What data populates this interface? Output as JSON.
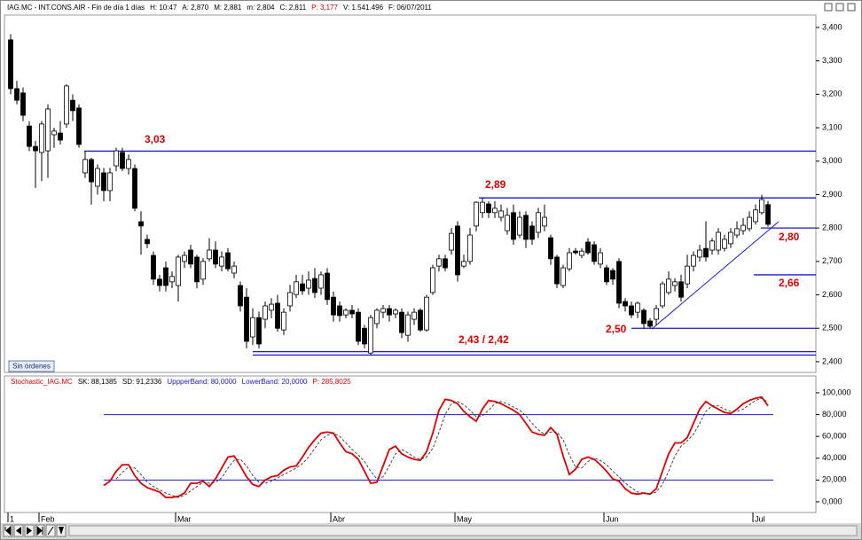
{
  "ui": {
    "orders_button": "Sin órdenes"
  },
  "chart_data": [
    {
      "type": "candlestick",
      "title": [
        {
          "text": "IAG.MC - INT.CONS.AIR - Fin de día 1 días",
          "color": "#000000"
        },
        {
          "text": "H: 10:47",
          "color": "#000000"
        },
        {
          "text": "A: 2,870",
          "color": "#000000"
        },
        {
          "text": "M: 2,881",
          "color": "#000000"
        },
        {
          "text": "m: 2,804",
          "color": "#000000"
        },
        {
          "text": "C: 2,811",
          "color": "#000000"
        },
        {
          "text": "P: 3,177",
          "color": "#e00000"
        },
        {
          "text": "V: 1.541.496",
          "color": "#000000"
        },
        {
          "text": "F: 06/07/2011",
          "color": "#000000"
        }
      ],
      "open": [
        3.363,
        3.217,
        3.204,
        3.105,
        3.044,
        3.026,
        3.031,
        3.079,
        3.084,
        3.111,
        3.182,
        3.159,
        2.965,
        3.005,
        2.925,
        2.965,
        2.912,
        2.986,
        3.026,
        2.978,
        2.978,
        2.819,
        2.766,
        2.718,
        2.647,
        2.681,
        2.639,
        2.628,
        2.7,
        2.734,
        2.713,
        2.647,
        2.708,
        2.734,
        2.686,
        2.726,
        2.665,
        2.628,
        2.593,
        2.474,
        2.532,
        2.527,
        2.554,
        2.575,
        2.495,
        2.567,
        2.601,
        2.633,
        2.62,
        2.649,
        2.62,
        2.665,
        2.593,
        2.567,
        2.54,
        2.554,
        2.548,
        2.5,
        2.426,
        2.514,
        2.548,
        2.559,
        2.543,
        2.548,
        2.479,
        2.527,
        2.554,
        2.495,
        2.607,
        2.686,
        2.708,
        2.734,
        2.806,
        2.686,
        2.7,
        2.806,
        2.846,
        2.872,
        2.846,
        2.832,
        2.792,
        2.846,
        2.779,
        2.838,
        2.806,
        2.787,
        2.806,
        2.771,
        2.713,
        2.628,
        2.678,
        2.731,
        2.718,
        2.758,
        2.75,
        2.692,
        2.681,
        2.673,
        2.7,
        2.58,
        2.567,
        2.548,
        2.554,
        2.522,
        2.527,
        2.567,
        2.607,
        2.628,
        2.639,
        2.633,
        2.686,
        2.713,
        2.739,
        2.734,
        2.734,
        2.739,
        2.753,
        2.779,
        2.792,
        2.798,
        2.819,
        2.846,
        2.87
      ],
      "high": [
        3.38,
        3.24,
        3.22,
        3.12,
        3.06,
        3.12,
        3.17,
        3.1,
        3.12,
        3.23,
        3.2,
        3.17,
        3.03,
        3.01,
        2.99,
        2.98,
        2.98,
        3.04,
        3.04,
        3.02,
        2.99,
        2.85,
        2.78,
        2.73,
        2.66,
        2.7,
        2.67,
        2.72,
        2.73,
        2.75,
        2.72,
        2.71,
        2.77,
        2.76,
        2.73,
        2.74,
        2.7,
        2.64,
        2.62,
        2.56,
        2.55,
        2.58,
        2.59,
        2.6,
        2.56,
        2.63,
        2.66,
        2.66,
        2.67,
        2.68,
        2.67,
        2.68,
        2.61,
        2.58,
        2.56,
        2.57,
        2.56,
        2.51,
        2.54,
        2.56,
        2.57,
        2.57,
        2.56,
        2.56,
        2.55,
        2.56,
        2.56,
        2.6,
        2.69,
        2.72,
        2.72,
        2.8,
        2.82,
        2.72,
        2.8,
        2.88,
        2.89,
        2.88,
        2.88,
        2.87,
        2.86,
        2.87,
        2.85,
        2.85,
        2.82,
        2.86,
        2.87,
        2.78,
        2.72,
        2.69,
        2.74,
        2.74,
        2.74,
        2.77,
        2.76,
        2.74,
        2.69,
        2.68,
        2.71,
        2.59,
        2.58,
        2.58,
        2.56,
        2.53,
        2.57,
        2.64,
        2.67,
        2.65,
        2.66,
        2.72,
        2.73,
        2.75,
        2.82,
        2.77,
        2.8,
        2.78,
        2.8,
        2.82,
        2.83,
        2.85,
        2.87,
        2.9,
        2.881
      ],
      "low": [
        3.2,
        3.17,
        3.12,
        3.03,
        2.92,
        2.94,
        2.95,
        3.04,
        3.05,
        3.1,
        3.12,
        3.04,
        2.95,
        2.87,
        2.9,
        2.88,
        2.88,
        2.97,
        2.97,
        2.96,
        2.85,
        2.72,
        2.74,
        2.63,
        2.61,
        2.61,
        2.62,
        2.58,
        2.68,
        2.68,
        2.62,
        2.63,
        2.7,
        2.68,
        2.67,
        2.67,
        2.65,
        2.55,
        2.44,
        2.45,
        2.44,
        2.5,
        2.53,
        2.49,
        2.48,
        2.55,
        2.59,
        2.6,
        2.6,
        2.59,
        2.6,
        2.57,
        2.52,
        2.52,
        2.53,
        2.53,
        2.45,
        2.44,
        2.42,
        2.5,
        2.53,
        2.52,
        2.53,
        2.47,
        2.46,
        2.51,
        2.49,
        2.49,
        2.6,
        2.67,
        2.67,
        2.72,
        2.64,
        2.68,
        2.69,
        2.79,
        2.83,
        2.83,
        2.83,
        2.82,
        2.78,
        2.75,
        2.77,
        2.74,
        2.75,
        2.77,
        2.79,
        2.69,
        2.62,
        2.62,
        2.67,
        2.72,
        2.71,
        2.72,
        2.69,
        2.68,
        2.63,
        2.63,
        2.56,
        2.55,
        2.53,
        2.53,
        2.5,
        2.5,
        2.51,
        2.56,
        2.6,
        2.61,
        2.58,
        2.62,
        2.67,
        2.7,
        2.7,
        2.72,
        2.72,
        2.73,
        2.74,
        2.77,
        2.78,
        2.79,
        2.81,
        2.84,
        2.804
      ],
      "close": [
        3.217,
        3.182,
        3.137,
        3.044,
        3.031,
        3.111,
        3.156,
        3.09,
        3.063,
        3.225,
        3.151,
        3.05,
        3.005,
        2.938,
        2.978,
        2.912,
        2.965,
        3.031,
        2.978,
        3.005,
        2.859,
        2.806,
        2.753,
        2.647,
        2.628,
        2.628,
        2.655,
        2.713,
        2.718,
        2.692,
        2.639,
        2.7,
        2.734,
        2.692,
        2.713,
        2.678,
        2.686,
        2.567,
        2.461,
        2.532,
        2.453,
        2.567,
        2.572,
        2.5,
        2.548,
        2.607,
        2.639,
        2.612,
        2.644,
        2.607,
        2.66,
        2.586,
        2.54,
        2.538,
        2.554,
        2.543,
        2.461,
        2.453,
        2.532,
        2.554,
        2.559,
        2.54,
        2.554,
        2.487,
        2.54,
        2.548,
        2.495,
        2.593,
        2.681,
        2.708,
        2.681,
        2.784,
        2.66,
        2.7,
        2.779,
        2.877,
        2.877,
        2.846,
        2.859,
        2.851,
        2.838,
        2.766,
        2.832,
        2.766,
        2.766,
        2.846,
        2.832,
        2.708,
        2.633,
        2.681,
        2.726,
        2.726,
        2.731,
        2.726,
        2.7,
        2.726,
        2.639,
        2.647,
        2.575,
        2.567,
        2.54,
        2.575,
        2.514,
        2.506,
        2.559,
        2.633,
        2.647,
        2.639,
        2.593,
        2.686,
        2.718,
        2.734,
        2.713,
        2.761,
        2.787,
        2.766,
        2.787,
        2.798,
        2.808,
        2.832,
        2.854,
        2.885,
        2.811
      ],
      "up_color": "#ffffff",
      "down_color": "#000000",
      "ylim": [
        2.368,
        3.437
      ],
      "yticks": [
        {
          "value": 2.4,
          "label": "2,400"
        },
        {
          "value": 2.5,
          "label": "2,500"
        },
        {
          "value": 2.6,
          "label": "2,600"
        },
        {
          "value": 2.7,
          "label": "2,700"
        },
        {
          "value": 2.8,
          "label": "2,800"
        },
        {
          "value": 2.9,
          "label": "2,900"
        },
        {
          "value": 3.0,
          "label": "3,000"
        },
        {
          "value": 3.1,
          "label": "3,100"
        },
        {
          "value": 3.2,
          "label": "3,200"
        },
        {
          "value": 3.3,
          "label": "3,300"
        },
        {
          "value": 3.4,
          "label": "3,400"
        }
      ],
      "annotation_color": "#1a1acc",
      "annotation_label_color": "#e00000",
      "annotations": [
        {
          "label": "3,03",
          "values": [
            3.03
          ]
        },
        {
          "label": "2,89",
          "values": [
            2.89
          ]
        },
        {
          "label": "2,80",
          "values": [
            2.8
          ]
        },
        {
          "label": "2,66",
          "values": [
            2.66
          ]
        },
        {
          "label": "2,50",
          "values": [
            2.5
          ]
        },
        {
          "label": "2,43 / 2,42",
          "values": [
            2.43,
            2.42
          ]
        }
      ]
    },
    {
      "type": "line",
      "title": [
        {
          "text": "Stochastic_IAG.MC",
          "color": "#e00000"
        },
        {
          "text": "SK: 88,1385",
          "color": "#000000"
        },
        {
          "text": "SD: 91,2336",
          "color": "#000000"
        },
        {
          "text": "UppperBand: 80,0000",
          "color": "#1a1acc"
        },
        {
          "text": "LowerBand: 20,0000",
          "color": "#1a1acc"
        },
        {
          "text": "P: 285,8025",
          "color": "#e00000"
        }
      ],
      "categories": [
        "1",
        null,
        null,
        null,
        null,
        "Feb",
        null,
        null,
        null,
        null,
        null,
        null,
        null,
        null,
        null,
        null,
        null,
        null,
        null,
        null,
        null,
        null,
        null,
        null,
        null,
        null,
        null,
        "Mar",
        null,
        null,
        null,
        null,
        null,
        null,
        null,
        null,
        null,
        null,
        null,
        null,
        null,
        null,
        null,
        null,
        null,
        null,
        null,
        null,
        null,
        null,
        null,
        null,
        "Abr",
        null,
        null,
        null,
        null,
        null,
        null,
        null,
        null,
        null,
        null,
        null,
        null,
        null,
        null,
        null,
        null,
        null,
        null,
        null,
        "May",
        null,
        null,
        null,
        null,
        null,
        null,
        null,
        null,
        null,
        null,
        null,
        null,
        null,
        null,
        null,
        null,
        null,
        null,
        null,
        null,
        null,
        null,
        null,
        "Jun",
        null,
        null,
        null,
        null,
        null,
        null,
        null,
        null,
        null,
        null,
        null,
        null,
        null,
        null,
        null,
        null,
        null,
        null,
        null,
        null,
        null,
        null,
        null,
        "Jul",
        null,
        null
      ],
      "series": [
        {
          "name": "SK",
          "color": "#e00000",
          "dashed": false,
          "values": [
            null,
            null,
            null,
            null,
            null,
            null,
            null,
            null,
            null,
            null,
            null,
            null,
            null,
            null,
            null,
            15,
            19,
            28,
            34,
            34,
            24,
            17,
            13,
            11,
            9,
            4,
            4,
            5,
            8,
            17,
            17,
            19,
            14,
            21,
            31,
            41,
            42,
            33,
            23,
            16,
            14,
            20,
            23,
            24,
            29,
            32,
            33,
            41,
            50,
            57,
            63,
            64,
            63,
            54,
            46,
            44,
            39,
            28,
            17,
            18,
            33,
            48,
            51,
            44,
            41,
            39,
            38,
            46,
            63,
            84,
            94,
            93,
            90,
            83,
            78,
            74,
            85,
            93,
            92,
            90,
            87,
            84,
            80,
            72,
            64,
            62,
            61,
            68,
            62,
            42,
            25,
            30,
            39,
            41,
            39,
            34,
            28,
            21,
            19,
            12,
            8,
            7,
            8,
            7,
            12,
            28,
            44,
            54,
            54,
            59,
            72,
            85,
            92,
            88,
            85,
            82,
            81,
            85,
            90,
            93,
            95,
            96,
            88.1385
          ]
        },
        {
          "name": "SD",
          "color": "#333333",
          "dashed": true,
          "values": [
            null,
            null,
            null,
            null,
            null,
            null,
            null,
            null,
            null,
            null,
            null,
            null,
            null,
            null,
            null,
            null,
            null,
            21,
            27,
            32,
            31,
            25,
            18,
            14,
            11,
            8,
            6,
            4,
            6,
            10,
            14,
            18,
            17,
            18,
            22,
            31,
            38,
            39,
            33,
            24,
            18,
            17,
            19,
            22,
            25,
            28,
            31,
            35,
            41,
            49,
            57,
            61,
            63,
            60,
            54,
            48,
            43,
            37,
            28,
            21,
            23,
            33,
            44,
            48,
            45,
            41,
            39,
            41,
            49,
            64,
            80,
            90,
            92,
            89,
            84,
            78,
            79,
            84,
            90,
            92,
            90,
            87,
            84,
            79,
            72,
            66,
            62,
            64,
            64,
            57,
            43,
            32,
            31,
            37,
            40,
            38,
            34,
            28,
            23,
            17,
            13,
            9,
            8,
            7,
            9,
            16,
            28,
            42,
            51,
            56,
            62,
            72,
            83,
            88,
            88,
            85,
            83,
            83,
            85,
            89,
            93,
            95,
            91.2336
          ]
        }
      ],
      "bands": [
        80,
        20
      ],
      "band_color": "#1a1acc",
      "ylim": [
        -9.8,
        113
      ],
      "yticks": [
        {
          "value": 0,
          "label": "0,000"
        },
        {
          "value": 20,
          "label": "20,000"
        },
        {
          "value": 40,
          "label": "40,000"
        },
        {
          "value": 60,
          "label": "60,000"
        },
        {
          "value": 80,
          "label": "80,000"
        },
        {
          "value": 100,
          "label": "100,000"
        }
      ]
    }
  ]
}
